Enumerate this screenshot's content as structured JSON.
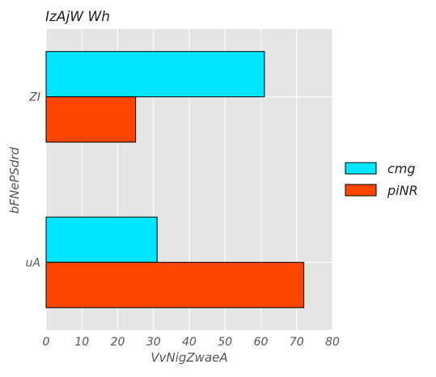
{
  "chart_data": {
    "type": "bar",
    "orientation": "horizontal",
    "title": "IzAjW Wh",
    "xlabel": "VvNigZwaeA",
    "ylabel": "bFNePSdrd",
    "categories": [
      "ZI",
      "uA"
    ],
    "series": [
      {
        "name": "cmg",
        "values": [
          61,
          31
        ],
        "color": "#00e5ff"
      },
      {
        "name": "piNR",
        "values": [
          25,
          72
        ],
        "color": "#ff4500"
      }
    ],
    "xlim": [
      0,
      80
    ],
    "xticks": [
      0,
      10,
      20,
      30,
      40,
      50,
      60,
      70,
      80
    ],
    "grid": true,
    "legend": "outside-right"
  },
  "colors": {
    "plot_background": "#e5e5e5",
    "grid": "#ffffff",
    "text": "#555555",
    "title": "#222222"
  }
}
